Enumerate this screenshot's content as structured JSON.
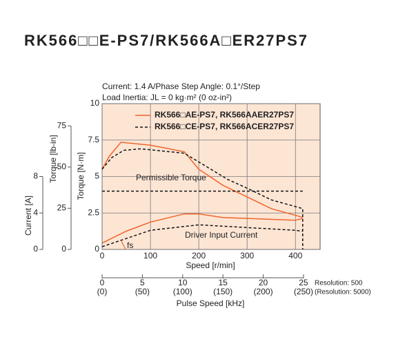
{
  "chart_data": {
    "type": "line",
    "title": "RK566□□E-PS7/RK566A□ER27PS7",
    "subtitle": [
      "Current: 1.4 A/Phase  Step Angle: 0.1°/Step",
      "Load Inertia: JL = 0 kg·m² (0 oz-in²)"
    ],
    "xlabel": "Speed [r/min]",
    "ylabel": "Torque [N·m]",
    "y2label": "Torque [lb-in]",
    "y3label": "Current [A]",
    "x2label": "Pulse Speed [kHz]",
    "xlim": [
      0,
      451
    ],
    "xticks": [
      0,
      100,
      200,
      300,
      400
    ],
    "ylim": [
      0,
      10
    ],
    "yticks": [
      0,
      2.5,
      5.0,
      7.5,
      10
    ],
    "y2lim": [
      0,
      88.5
    ],
    "y2ticks": [
      0,
      25,
      50,
      75
    ],
    "y3lim": [
      0,
      16
    ],
    "y3ticks": [
      0,
      4,
      8
    ],
    "x2lim": [
      0,
      27.06
    ],
    "x2ticks": [
      0,
      5,
      10,
      15,
      20,
      25
    ],
    "x2note": "Resolution: 500",
    "x3lim": [
      0,
      270.6
    ],
    "x3ticks": [
      {
        "value": 0,
        "label": "(0)"
      },
      {
        "value": 50,
        "label": "(50)"
      },
      {
        "value": 100,
        "label": "(100)"
      },
      {
        "value": 150,
        "label": "(150)"
      },
      {
        "value": 200,
        "label": "(200)"
      },
      {
        "value": 250,
        "label": "(250)"
      }
    ],
    "x3note": "(Resolution: 5000)",
    "grid": true,
    "background": "#fde5d4",
    "series": [
      {
        "name": "RK566□AE-PS7, RK566AAER27PS7",
        "color": "#f0642a",
        "dash": false,
        "x": [
          0,
          15,
          39,
          100,
          170,
          200,
          250,
          300,
          350,
          415
        ],
        "values": [
          5.5,
          6.4,
          7.35,
          7.15,
          6.7,
          5.5,
          4.4,
          3.6,
          2.8,
          2.2
        ]
      },
      {
        "name": "RK566□CE-PS7, RK566ACER27PS7",
        "color": "#111111",
        "dash": true,
        "x": [
          0,
          20,
          45,
          80,
          170,
          210,
          260,
          300,
          350,
          415,
          415
        ],
        "values": [
          5.5,
          6.3,
          6.8,
          6.9,
          6.6,
          5.8,
          4.8,
          4.2,
          3.4,
          2.8,
          0
        ]
      },
      {
        "color": "#111111",
        "dash": true,
        "x": [
          0,
          415
        ],
        "values": [
          4,
          4
        ]
      },
      {
        "color": "#f0642a",
        "dash": false,
        "axis": "y3",
        "x": [
          0,
          50,
          100,
          170,
          200,
          250,
          300,
          400,
          415
        ],
        "values": [
          0.7,
          2.0,
          3.0,
          3.9,
          3.9,
          3.5,
          3.4,
          3.2,
          3.4
        ]
      },
      {
        "color": "#111111",
        "dash": true,
        "axis": "y3",
        "x": [
          0,
          100,
          200,
          300,
          400,
          415
        ],
        "values": [
          0.3,
          2.1,
          2.7,
          2.4,
          2.1,
          2.0
        ]
      }
    ],
    "annotations": [
      "Permissible Torque",
      "Driver Input Current",
      "fs"
    ]
  }
}
